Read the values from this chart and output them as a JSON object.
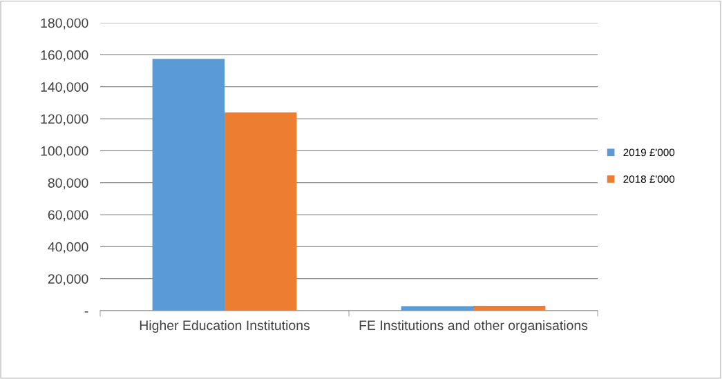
{
  "chart_data": {
    "type": "bar",
    "categories": [
      "Higher Education Institutions",
      "FE Institutions and other organisations"
    ],
    "series": [
      {
        "name": "2019 £'000",
        "color": "#5b9bd5",
        "values": [
          157500,
          2800
        ]
      },
      {
        "name": "2018 £'000",
        "color": "#ed7d31",
        "values": [
          124000,
          3000
        ]
      }
    ],
    "ylim": [
      0,
      180000
    ],
    "yticks": [
      {
        "value": 0,
        "label": "-"
      },
      {
        "value": 20000,
        "label": "20,000"
      },
      {
        "value": 40000,
        "label": "40,000"
      },
      {
        "value": 60000,
        "label": "60,000"
      },
      {
        "value": 80000,
        "label": "80,000"
      },
      {
        "value": 100000,
        "label": "100,000"
      },
      {
        "value": 120000,
        "label": "120,000"
      },
      {
        "value": 140000,
        "label": "140,000"
      },
      {
        "value": 160000,
        "label": "160,000"
      },
      {
        "value": 180000,
        "label": "180,000"
      }
    ],
    "grid": "y",
    "legend": "right"
  }
}
